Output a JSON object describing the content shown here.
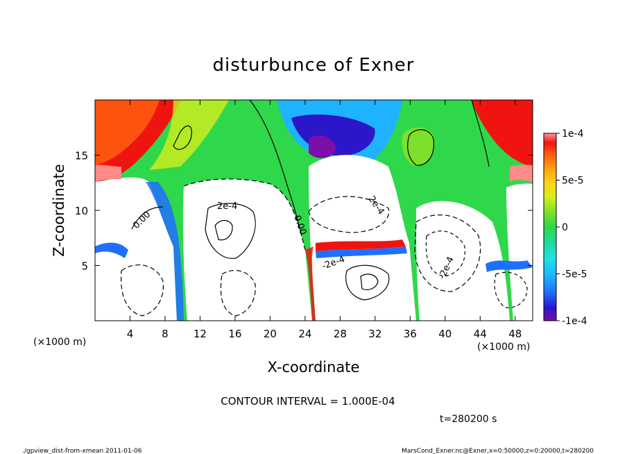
{
  "chart_data": {
    "type": "heatmap",
    "title": "disturbunce of Exner",
    "xlabel": "X-coordinate",
    "ylabel": "Z-coordinate",
    "x_unit_left": "(×1000 m)",
    "x_unit_right": "(×1000 m)",
    "xlim": [
      0,
      50
    ],
    "ylim": [
      0,
      20
    ],
    "x_ticks": [
      4,
      8,
      12,
      16,
      20,
      24,
      28,
      32,
      36,
      40,
      44,
      48
    ],
    "x_tick_labels": [
      "4",
      "8",
      "12",
      "16",
      "20",
      "24",
      "28",
      "32",
      "36",
      "40",
      "44",
      "48"
    ],
    "y_ticks": [
      5,
      10,
      15
    ],
    "y_tick_labels": [
      "5",
      "10",
      "15"
    ],
    "colorbar": {
      "range": [
        -0.0001,
        0.0001
      ],
      "ticks": [
        0.0001,
        5e-05,
        0,
        -5e-05,
        -0.0001
      ],
      "tick_labels": [
        "1e-4",
        "5e-5",
        "0",
        "-5e-5",
        "-1e-4"
      ],
      "colors": [
        "#7b0fa8",
        "#2b16c9",
        "#1f6fff",
        "#1fb3ff",
        "#22e0e6",
        "#21d89a",
        "#2fd84a",
        "#7ee02a",
        "#d6ee1c",
        "#ffd21a",
        "#ff9a10",
        "#ff5a10",
        "#ef1410",
        "#ff8a8a"
      ]
    },
    "contour_interval_text": "CONTOUR INTERVAL = 1.000E-04",
    "contour_labels": [
      "0.00",
      "0.00",
      "2e-4",
      "2e-4",
      "-2e-4",
      "-2e-4"
    ],
    "time_text": "t=280200 s"
  },
  "footer": {
    "left": "./gpview_dist-from-xmean  2011-01-06",
    "right": "MarsCond_Exner.nc@Exner,x=0:50000,z=0:20000,t=280200"
  }
}
